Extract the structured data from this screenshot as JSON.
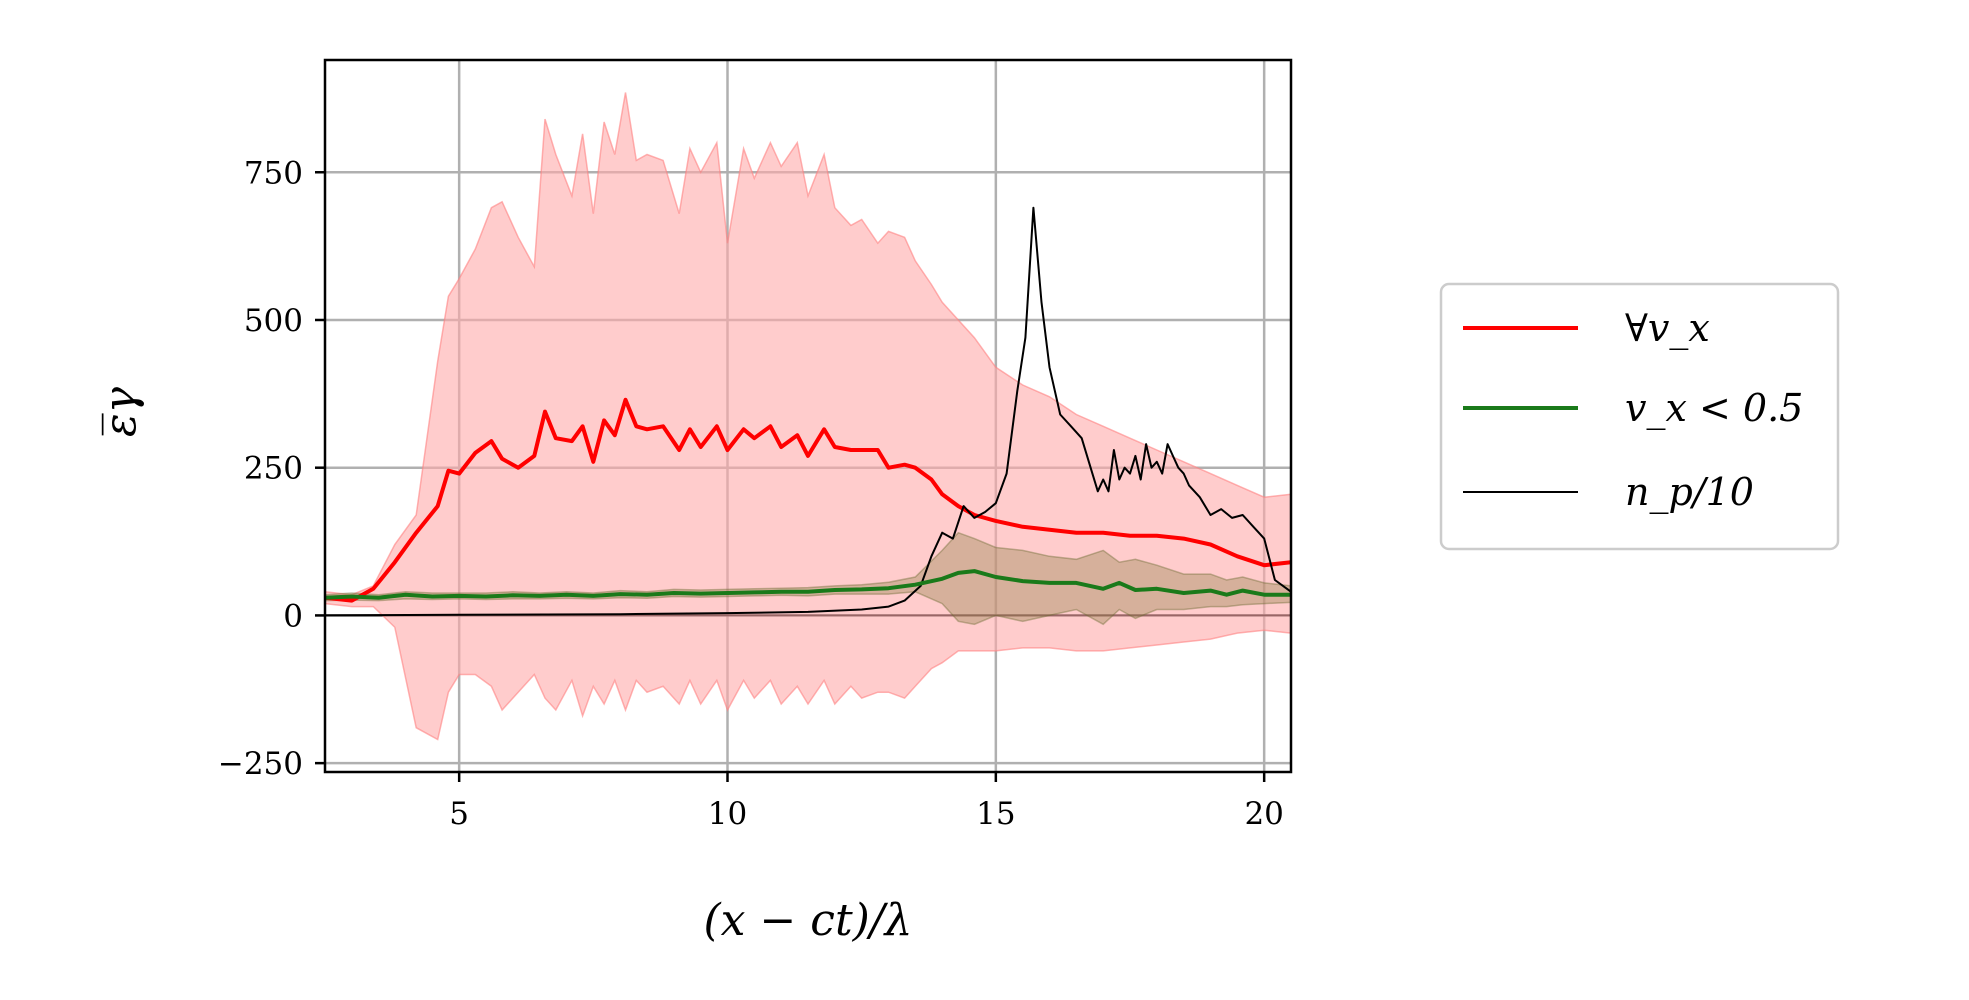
{
  "chart_data": {
    "type": "line",
    "xlabel": "(x − ct)/λ",
    "ylabel": "ε̅γ",
    "xlim": [
      2.5,
      20.5
    ],
    "ylim": [
      -265,
      940
    ],
    "x_ticks": [
      5,
      10,
      15,
      20
    ],
    "y_ticks": [
      -250,
      0,
      250,
      500,
      750
    ],
    "x_tick_labels": [
      "5",
      "10",
      "15",
      "20"
    ],
    "y_tick_labels": [
      "−250",
      "0",
      "250",
      "500",
      "750"
    ],
    "grid": true,
    "legend_position": "outside-right",
    "colors": {
      "all": "#ff0000",
      "slow": "#1a7a1a",
      "np": "#000000",
      "band_all": "#ffaaaa",
      "band_slow": "#8a7a40"
    },
    "series": [
      {
        "name": "∀v_x",
        "key": "all",
        "x": [
          2.5,
          3.0,
          3.4,
          3.8,
          4.2,
          4.6,
          4.8,
          5.0,
          5.3,
          5.6,
          5.8,
          6.1,
          6.4,
          6.6,
          6.8,
          7.1,
          7.3,
          7.5,
          7.7,
          7.9,
          8.1,
          8.3,
          8.5,
          8.8,
          9.1,
          9.3,
          9.5,
          9.8,
          10.0,
          10.3,
          10.5,
          10.8,
          11.0,
          11.3,
          11.5,
          11.8,
          12.0,
          12.3,
          12.5,
          12.8,
          13.0,
          13.3,
          13.5,
          13.8,
          14.0,
          14.3,
          14.6,
          15.0,
          15.5,
          16.0,
          16.5,
          17.0,
          17.5,
          18.0,
          18.5,
          19.0,
          19.5,
          20.0,
          20.5
        ],
        "y": [
          30,
          25,
          45,
          90,
          140,
          185,
          245,
          240,
          275,
          295,
          265,
          250,
          270,
          345,
          300,
          295,
          320,
          260,
          330,
          305,
          365,
          320,
          315,
          320,
          280,
          315,
          285,
          320,
          280,
          315,
          300,
          320,
          285,
          305,
          270,
          315,
          285,
          280,
          280,
          280,
          250,
          255,
          250,
          230,
          205,
          185,
          170,
          160,
          150,
          145,
          140,
          140,
          135,
          135,
          130,
          120,
          100,
          85,
          90
        ],
        "band_upper": [
          40,
          35,
          50,
          120,
          170,
          430,
          540,
          570,
          620,
          690,
          700,
          640,
          590,
          840,
          780,
          710,
          815,
          680,
          835,
          780,
          885,
          770,
          780,
          770,
          680,
          790,
          750,
          800,
          630,
          790,
          740,
          800,
          760,
          800,
          710,
          780,
          690,
          660,
          670,
          630,
          650,
          640,
          600,
          560,
          530,
          500,
          470,
          420,
          390,
          370,
          340,
          320,
          300,
          280,
          260,
          240,
          220,
          200,
          205
        ],
        "band_lower": [
          20,
          15,
          15,
          -20,
          -190,
          -210,
          -130,
          -100,
          -100,
          -120,
          -160,
          -130,
          -100,
          -140,
          -160,
          -110,
          -170,
          -120,
          -150,
          -110,
          -160,
          -110,
          -130,
          -120,
          -150,
          -110,
          -150,
          -110,
          -160,
          -110,
          -140,
          -110,
          -150,
          -120,
          -150,
          -110,
          -150,
          -120,
          -140,
          -130,
          -130,
          -140,
          -120,
          -90,
          -80,
          -60,
          -60,
          -60,
          -55,
          -55,
          -60,
          -60,
          -55,
          -50,
          -45,
          -40,
          -30,
          -25,
          -30
        ]
      },
      {
        "name": "v_x < 0.5",
        "key": "slow",
        "x": [
          2.5,
          3.0,
          3.5,
          4.0,
          4.5,
          5.0,
          5.5,
          6.0,
          6.5,
          7.0,
          7.5,
          8.0,
          8.5,
          9.0,
          9.5,
          10.0,
          10.5,
          11.0,
          11.5,
          12.0,
          12.5,
          13.0,
          13.5,
          14.0,
          14.3,
          14.6,
          15.0,
          15.5,
          16.0,
          16.5,
          17.0,
          17.3,
          17.6,
          18.0,
          18.5,
          19.0,
          19.3,
          19.6,
          20.0,
          20.5
        ],
        "y": [
          30,
          32,
          30,
          35,
          32,
          33,
          32,
          34,
          33,
          35,
          33,
          36,
          35,
          38,
          37,
          38,
          39,
          40,
          40,
          43,
          44,
          46,
          52,
          62,
          72,
          75,
          65,
          58,
          55,
          55,
          45,
          55,
          43,
          45,
          38,
          42,
          35,
          42,
          35,
          35
        ],
        "band_upper": [
          35,
          38,
          35,
          40,
          38,
          38,
          38,
          40,
          38,
          40,
          38,
          42,
          40,
          44,
          43,
          44,
          45,
          46,
          47,
          50,
          52,
          56,
          65,
          110,
          140,
          130,
          115,
          110,
          100,
          95,
          110,
          90,
          95,
          85,
          70,
          70,
          60,
          65,
          55,
          50
        ],
        "band_lower": [
          25,
          26,
          25,
          28,
          27,
          28,
          27,
          28,
          28,
          29,
          28,
          30,
          29,
          32,
          31,
          32,
          33,
          34,
          33,
          36,
          36,
          36,
          40,
          20,
          -10,
          -15,
          0,
          -10,
          0,
          10,
          -15,
          10,
          -5,
          10,
          10,
          15,
          15,
          18,
          20,
          22
        ]
      },
      {
        "name": "n_p/10",
        "key": "np",
        "x": [
          2.5,
          5.0,
          8.0,
          10.0,
          11.5,
          12.5,
          13.0,
          13.3,
          13.6,
          13.8,
          14.0,
          14.2,
          14.4,
          14.6,
          14.8,
          15.0,
          15.2,
          15.4,
          15.55,
          15.7,
          15.85,
          16.0,
          16.2,
          16.4,
          16.6,
          16.8,
          16.9,
          17.0,
          17.1,
          17.2,
          17.3,
          17.4,
          17.5,
          17.6,
          17.7,
          17.8,
          17.9,
          18.0,
          18.1,
          18.2,
          18.3,
          18.4,
          18.5,
          18.6,
          18.8,
          19.0,
          19.2,
          19.4,
          19.6,
          19.8,
          20.0,
          20.2,
          20.5
        ],
        "y": [
          0,
          1,
          2,
          4,
          6,
          10,
          15,
          25,
          50,
          100,
          140,
          130,
          185,
          165,
          175,
          190,
          240,
          380,
          470,
          690,
          530,
          420,
          340,
          320,
          300,
          240,
          210,
          230,
          210,
          280,
          230,
          250,
          240,
          270,
          230,
          290,
          250,
          260,
          240,
          290,
          270,
          250,
          240,
          220,
          200,
          170,
          180,
          165,
          170,
          150,
          130,
          60,
          40
        ]
      }
    ]
  }
}
